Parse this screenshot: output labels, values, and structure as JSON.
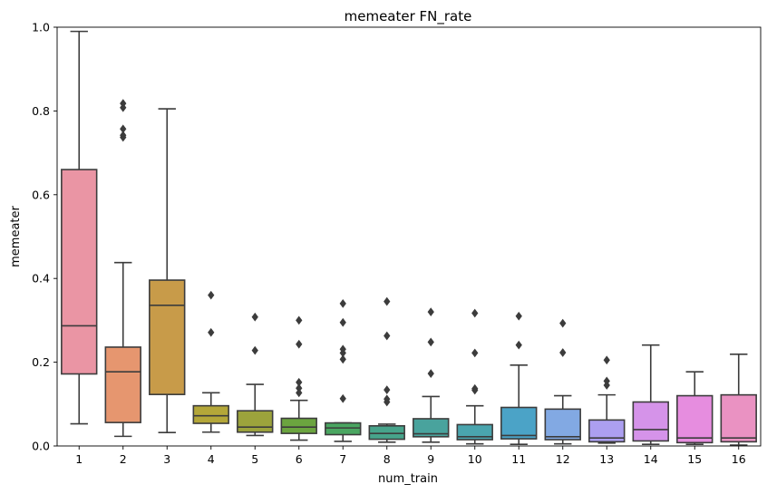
{
  "chart_data": {
    "type": "box",
    "title": "memeater FN_rate",
    "xlabel": "num_train",
    "ylabel": "memeater",
    "ylim": [
      0,
      1
    ],
    "yticks": [
      "0.0",
      "0.2",
      "0.4",
      "0.6",
      "0.8",
      "1.0"
    ],
    "grid": false,
    "categories": [
      "1",
      "2",
      "3",
      "4",
      "5",
      "6",
      "7",
      "8",
      "9",
      "10",
      "11",
      "12",
      "13",
      "14",
      "15",
      "16"
    ],
    "boxes": [
      {
        "category": "1",
        "color": "#ea95a4",
        "whislo": 0.053,
        "q1": 0.172,
        "median": 0.287,
        "q3": 0.66,
        "whishi": 0.99,
        "fliers": []
      },
      {
        "category": "2",
        "color": "#e6966f",
        "whislo": 0.023,
        "q1": 0.056,
        "median": 0.177,
        "q3": 0.236,
        "whishi": 0.438,
        "fliers": [
          0.737,
          0.742,
          0.757,
          0.808,
          0.818
        ]
      },
      {
        "category": "3",
        "color": "#c89b49",
        "whislo": 0.032,
        "q1": 0.123,
        "median": 0.336,
        "q3": 0.396,
        "whishi": 0.805,
        "fliers": []
      },
      {
        "category": "4",
        "color": "#b4a739",
        "whislo": 0.033,
        "q1": 0.054,
        "median": 0.072,
        "q3": 0.096,
        "whishi": 0.127,
        "fliers": [
          0.271,
          0.36
        ]
      },
      {
        "category": "5",
        "color": "#9ca33c",
        "whislo": 0.025,
        "q1": 0.033,
        "median": 0.045,
        "q3": 0.084,
        "whishi": 0.147,
        "fliers": [
          0.228,
          0.308
        ]
      },
      {
        "category": "6",
        "color": "#6ba43f",
        "whislo": 0.014,
        "q1": 0.03,
        "median": 0.045,
        "q3": 0.066,
        "whishi": 0.109,
        "fliers": [
          0.127,
          0.138,
          0.152,
          0.243,
          0.3
        ]
      },
      {
        "category": "7",
        "color": "#4aa661",
        "whislo": 0.011,
        "q1": 0.027,
        "median": 0.043,
        "q3": 0.055,
        "whishi": 0.055,
        "fliers": [
          0.113,
          0.207,
          0.222,
          0.231,
          0.295,
          0.34
        ]
      },
      {
        "category": "8",
        "color": "#47a48b",
        "whislo": 0.009,
        "q1": 0.016,
        "median": 0.03,
        "q3": 0.048,
        "whishi": 0.052,
        "fliers": [
          0.105,
          0.112,
          0.134,
          0.263,
          0.345
        ]
      },
      {
        "category": "9",
        "color": "#49a39d",
        "whislo": 0.009,
        "q1": 0.022,
        "median": 0.029,
        "q3": 0.065,
        "whishi": 0.118,
        "fliers": [
          0.173,
          0.248,
          0.32
        ]
      },
      {
        "category": "10",
        "color": "#4aa5ae",
        "whislo": 0.005,
        "q1": 0.015,
        "median": 0.022,
        "q3": 0.051,
        "whishi": 0.096,
        "fliers": [
          0.133,
          0.137,
          0.222,
          0.317
        ]
      },
      {
        "category": "11",
        "color": "#4ba3c7",
        "whislo": 0.004,
        "q1": 0.017,
        "median": 0.025,
        "q3": 0.092,
        "whishi": 0.193,
        "fliers": [
          0.241,
          0.31
        ]
      },
      {
        "category": "12",
        "color": "#82a9e3",
        "whislo": 0.005,
        "q1": 0.015,
        "median": 0.022,
        "q3": 0.088,
        "whishi": 0.12,
        "fliers": [
          0.223,
          0.293
        ]
      },
      {
        "category": "13",
        "color": "#ac9ff0",
        "whislo": 0.007,
        "q1": 0.01,
        "median": 0.019,
        "q3": 0.062,
        "whishi": 0.122,
        "fliers": [
          0.145,
          0.155,
          0.205
        ]
      },
      {
        "category": "14",
        "color": "#d593e9",
        "whislo": 0.004,
        "q1": 0.012,
        "median": 0.039,
        "q3": 0.105,
        "whishi": 0.241,
        "fliers": []
      },
      {
        "category": "15",
        "color": "#e68ddf",
        "whislo": 0.004,
        "q1": 0.008,
        "median": 0.019,
        "q3": 0.12,
        "whishi": 0.177,
        "fliers": []
      },
      {
        "category": "16",
        "color": "#ea92c2",
        "whislo": 0.002,
        "q1": 0.01,
        "median": 0.019,
        "q3": 0.122,
        "whishi": 0.219,
        "fliers": []
      }
    ]
  }
}
